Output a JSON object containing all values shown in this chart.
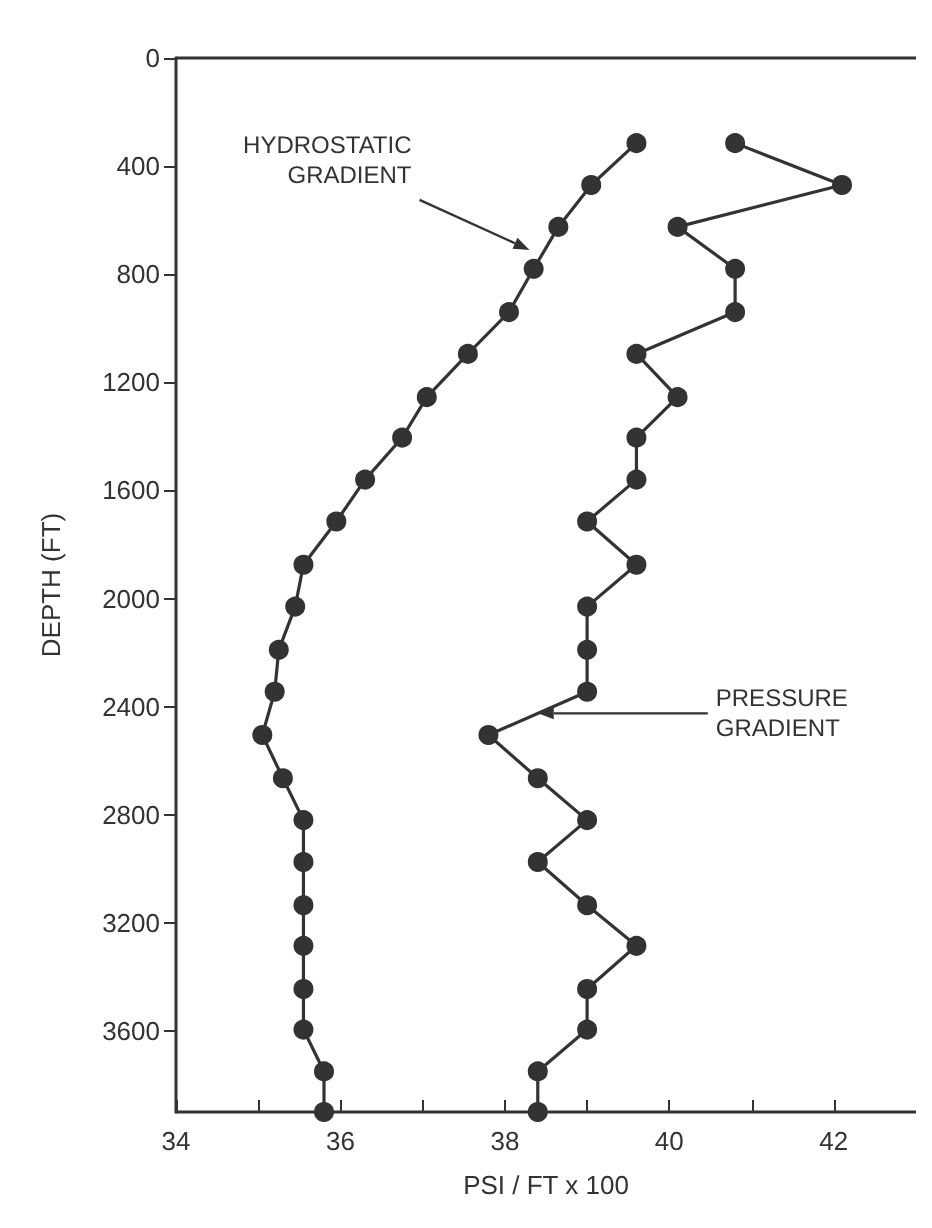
{
  "chart_data": {
    "type": "line",
    "xlabel": "PSI / FT x 100",
    "ylabel": "DEPTH (FT)",
    "xlim": [
      34,
      43
    ],
    "xticks": [
      34,
      {
        "value": 35,
        "label": null
      },
      36,
      {
        "value": 37,
        "label": null
      },
      38,
      {
        "value": 39,
        "label": null
      },
      40,
      {
        "value": 41,
        "label": null
      },
      42
    ],
    "ylim": [
      3900,
      0
    ],
    "yticks": [
      0,
      400,
      800,
      1200,
      1600,
      2000,
      2400,
      2800,
      3200,
      3600
    ],
    "grid": false,
    "marker": "circle",
    "line_style": "solid",
    "series": [
      {
        "color": "#333333",
        "x": [
          39.6,
          39.05,
          38.65,
          38.35,
          38.05,
          37.55,
          37.05,
          36.75,
          36.3,
          35.95,
          35.55,
          35.45,
          35.25,
          35.2,
          35.05,
          35.3,
          35.55,
          35.55,
          35.55,
          35.55,
          35.55,
          35.55,
          35.8,
          35.8
        ],
        "values": [
          315,
          470,
          625,
          780,
          940,
          1095,
          1255,
          1405,
          1560,
          1715,
          1875,
          2030,
          2190,
          2345,
          2505,
          2665,
          2820,
          2975,
          3135,
          3285,
          3445,
          3595,
          3750,
          3900
        ]
      },
      {
        "color": "#333333",
        "x": [
          40.8,
          42.1,
          40.1,
          40.8,
          40.8,
          39.6,
          40.1,
          39.6,
          39.6,
          39.0,
          39.6,
          39.0,
          39.0,
          39.0,
          37.8,
          38.4,
          39.0,
          38.4,
          39.0,
          39.6,
          39.0,
          39.0,
          38.4,
          38.4
        ],
        "values": [
          315,
          470,
          625,
          780,
          940,
          1095,
          1255,
          1405,
          1560,
          1715,
          1875,
          2030,
          2190,
          2345,
          2505,
          2665,
          2820,
          2975,
          3135,
          3285,
          3445,
          3595,
          3750,
          3900
        ]
      }
    ],
    "annotations": [
      {
        "text": "HYDROSTATIC\nGRADIENT",
        "x": 38.3,
        "y": 710
      },
      {
        "text": "PRESSURE\nGRADIENT",
        "x": 38.4,
        "y": 2425
      }
    ]
  }
}
